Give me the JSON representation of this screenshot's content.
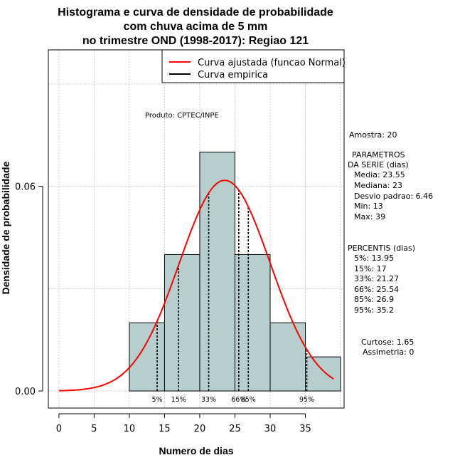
{
  "chart_data": {
    "type": "histogram",
    "title_lines": [
      "Histograma e curva de densidade de probabilidade",
      "com chuva acima de 5 mm",
      "no trimestre OND (1998-2017): Regiao 121"
    ],
    "xlabel": "Numero de dias",
    "ylabel": "Densidade de probabilidade",
    "xlim": [
      -1.5,
      40.5
    ],
    "ylim": [
      -0.005,
      0.1
    ],
    "x_ticks": [
      0,
      5,
      10,
      15,
      20,
      25,
      30,
      35
    ],
    "y_ticks": [
      0.0,
      0.06
    ],
    "y_tick_labels": [
      "0.00",
      "0.06"
    ],
    "bins": [
      {
        "start": 10,
        "end": 15,
        "density": 0.02
      },
      {
        "start": 15,
        "end": 20,
        "density": 0.04
      },
      {
        "start": 20,
        "end": 25,
        "density": 0.07
      },
      {
        "start": 25,
        "end": 30,
        "density": 0.04
      },
      {
        "start": 30,
        "end": 35,
        "density": 0.02
      },
      {
        "start": 35,
        "end": 40,
        "density": 0.01
      }
    ],
    "bar_color": "#b7cece",
    "normal_fit": {
      "mean": 23.55,
      "sd": 6.46,
      "x_range": [
        0,
        39
      ],
      "color": "#ff0000"
    },
    "percentiles": [
      {
        "label": "5%",
        "value": 13.95
      },
      {
        "label": "15%",
        "value": 17
      },
      {
        "label": "33%",
        "value": 21.27
      },
      {
        "label": "66%",
        "value": 25.54
      },
      {
        "label": "85%",
        "value": 26.9
      },
      {
        "label": "95%",
        "value": 35.2
      }
    ],
    "grid": true,
    "legend": {
      "position": "top-right",
      "entries": [
        {
          "label": "Curva ajustada (funcao Normal)",
          "color": "#ff0000"
        },
        {
          "label": "Curva empirica",
          "color": "#000000"
        }
      ]
    },
    "annotation": "Produto: CPTEC/INPE"
  },
  "stats": {
    "amostra": "Amostra: 20",
    "param_header_1": "PARAMETROS",
    "param_header_2": "DA SERIE (dias)",
    "media": "Media: 23.55",
    "mediana": "Mediana: 23",
    "desvio": "Desvio padrao: 6.46",
    "min": "Min: 13",
    "max": "Max: 39",
    "percentis_header": "PERCENTIS (dias)",
    "p5": "5%: 13.95",
    "p15": "15%: 17",
    "p33": "33%: 21.27",
    "p66": "66%: 25.54",
    "p85": "85%: 26.9",
    "p95": "95%: 35.2",
    "curtose": "Curtose: 1.65",
    "assimetria": "Assimetria: 0"
  }
}
